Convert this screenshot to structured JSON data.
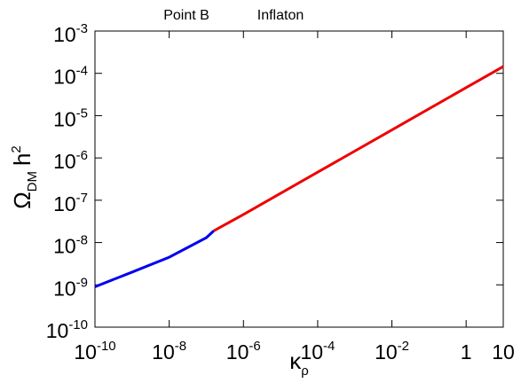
{
  "chart_data": {
    "type": "line",
    "log_x": true,
    "log_y": true,
    "x_label": {
      "symbol": "κ",
      "subscript": "ρ"
    },
    "y_label": {
      "symbol": "Ω",
      "subscript": "DM",
      "text": "h",
      "superscript": "2"
    },
    "xlim": [
      1e-10,
      10
    ],
    "ylim": [
      1e-10,
      0.001
    ],
    "xticks": [
      {
        "value": 1e-10,
        "label": "10",
        "exponent": "-10"
      },
      {
        "value": 1e-08,
        "label": "10",
        "exponent": "-8"
      },
      {
        "value": 1e-06,
        "label": "10",
        "exponent": "-6"
      },
      {
        "value": 0.0001,
        "label": "10",
        "exponent": "-4"
      },
      {
        "value": 0.01,
        "label": "10",
        "exponent": "-2"
      },
      1,
      10
    ],
    "yticks": [
      {
        "value": 1e-10,
        "label": "10",
        "exponent": "-10"
      },
      {
        "value": 1e-09,
        "label": "10",
        "exponent": "-9"
      },
      {
        "value": 1e-08,
        "label": "10",
        "exponent": "-8"
      },
      {
        "value": 1e-07,
        "label": "10",
        "exponent": "-7"
      },
      {
        "value": 1e-06,
        "label": "10",
        "exponent": "-6"
      },
      {
        "value": 1e-05,
        "label": "10",
        "exponent": "-5"
      },
      {
        "value": 0.0001,
        "label": "10",
        "exponent": "-4"
      },
      {
        "value": 0.001,
        "label": "10",
        "exponent": "-3"
      }
    ],
    "series": [
      {
        "name": "Point B",
        "color": "#0000ee",
        "x": [
          1e-10,
          1e-09,
          1e-08,
          1e-07,
          1.6e-07
        ],
        "values": [
          9e-10,
          2e-09,
          4.5e-09,
          1.3e-08,
          1.9e-08
        ]
      },
      {
        "name": "Inflaton",
        "color": "#ee0000",
        "x": [
          1.6e-07,
          1e-06,
          0.0001,
          0.01,
          1,
          10
        ],
        "values": [
          1.9e-08,
          4.6e-08,
          4.6e-07,
          4.6e-06,
          4.6e-05,
          0.000145
        ]
      }
    ]
  }
}
